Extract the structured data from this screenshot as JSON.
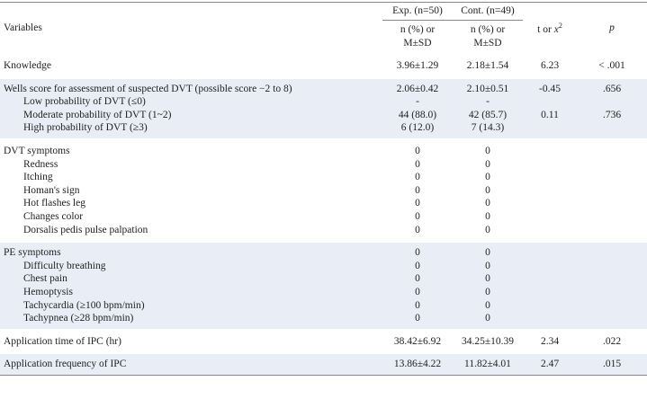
{
  "header": {
    "variables": "Variables",
    "exp": "Exp. (n=50)",
    "cont": "Cont. (n=49)",
    "exp_sub": [
      "n (%) or",
      "M±SD"
    ],
    "cont_sub": [
      "n (%) or",
      "M±SD"
    ],
    "t": "t or",
    "chi": "x",
    "chi_sup": "2",
    "p": "p"
  },
  "groups": [
    {
      "heading": {
        "label": "Knowledge",
        "exp": "3.96±1.29",
        "cont": "2.18±1.54",
        "t": "6.23",
        "p": "< .001"
      },
      "items": []
    },
    {
      "heading": {
        "label": "Wells score for assessment of suspected DVT (possible score −2 to 8)",
        "exp": "2.06±0.42",
        "cont": "2.10±0.51",
        "t": "-0.45",
        "p": ".656"
      },
      "items": [
        {
          "label": "Low probability of DVT (≤0)",
          "exp": "-",
          "cont": "-"
        },
        {
          "label": "Moderate probability of DVT (1~2)",
          "exp": "44 (88.0)",
          "cont": "42 (85.7)",
          "t": "0.11",
          "p": ".736"
        },
        {
          "label": "High probability of DVT (≥3)",
          "exp": "6 (12.0)",
          "cont": "7 (14.3)"
        }
      ]
    },
    {
      "heading": {
        "label": "DVT symptoms",
        "exp": "0",
        "cont": "0"
      },
      "items": [
        {
          "label": "Redness",
          "exp": "0",
          "cont": "0"
        },
        {
          "label": "Itching",
          "exp": "0",
          "cont": "0"
        },
        {
          "label": "Homan's sign",
          "exp": "0",
          "cont": "0"
        },
        {
          "label": "Hot flashes leg",
          "exp": "0",
          "cont": "0"
        },
        {
          "label": "Changes color",
          "exp": "0",
          "cont": "0"
        },
        {
          "label": "Dorsalis pedis pulse palpation",
          "exp": "0",
          "cont": "0"
        }
      ]
    },
    {
      "heading": {
        "label": "PE symptoms",
        "exp": "0",
        "cont": "0"
      },
      "items": [
        {
          "label": "Difficulty breathing",
          "exp": "0",
          "cont": "0"
        },
        {
          "label": "Chest pain",
          "exp": "0",
          "cont": "0"
        },
        {
          "label": "Hemoptysis",
          "exp": "0",
          "cont": "0"
        },
        {
          "label": "Tachycardia (≥100 bpm/min)",
          "exp": "0",
          "cont": "0"
        },
        {
          "label": "Tachypnea (≥28 bpm/min)",
          "exp": "0",
          "cont": "0"
        }
      ]
    },
    {
      "heading": {
        "label": "Application time of IPC (hr)",
        "exp": "38.42±6.92",
        "cont": "34.25±10.39",
        "t": "2.34",
        "p": ".022"
      },
      "items": []
    },
    {
      "heading": {
        "label": "Application frequency of IPC",
        "exp": "13.86±4.22",
        "cont": "11.82±4.01",
        "t": "2.47",
        "p": ".015"
      },
      "items": []
    }
  ]
}
